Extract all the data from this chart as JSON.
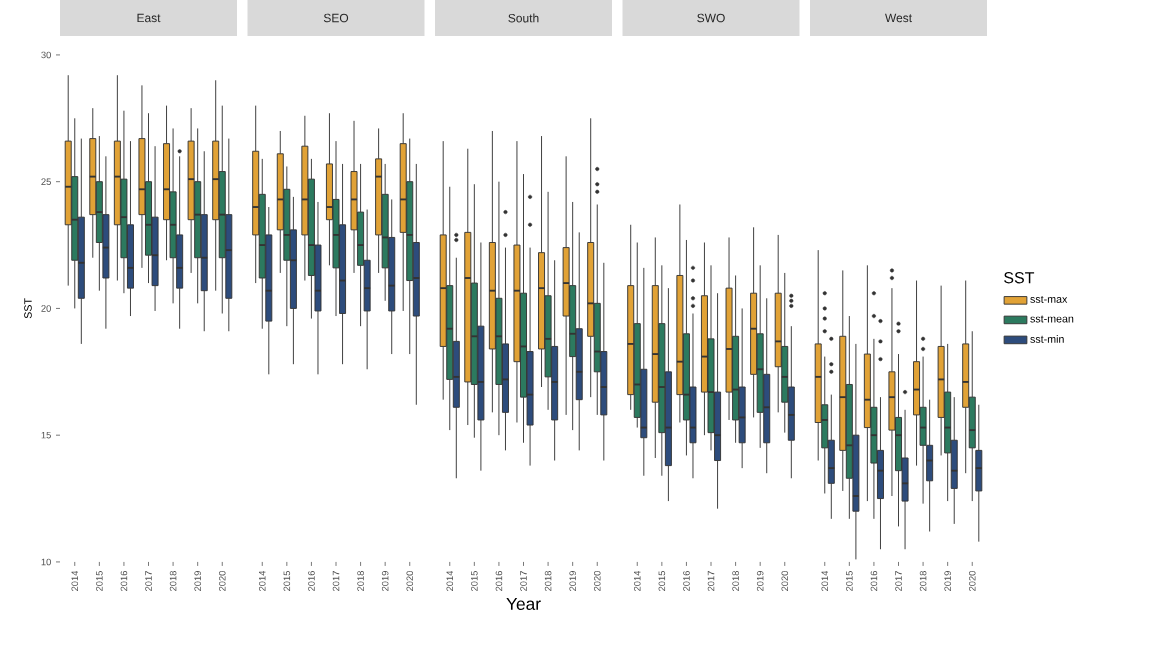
{
  "chart_data": [
    {
      "type": "box",
      "title": "East",
      "ylabel": "SST",
      "categories": [
        "2014",
        "2015",
        "2016",
        "2017",
        "2018",
        "2019",
        "2020"
      ],
      "ylim": [
        10,
        30
      ],
      "yticks": [
        10,
        15,
        20,
        25,
        30
      ],
      "series": [
        {
          "color": "#e1a236",
          "boxes": [
            {
              "low": 20.9,
              "q1": 23.3,
              "median": 24.8,
              "q3": 26.6,
              "high": 29.2
            },
            {
              "low": 22.0,
              "q1": 23.7,
              "median": 25.2,
              "q3": 26.7,
              "high": 27.9
            },
            {
              "low": 21.1,
              "q1": 23.3,
              "median": 25.2,
              "q3": 26.6,
              "high": 29.2
            },
            {
              "low": 21.6,
              "q1": 23.7,
              "median": 24.7,
              "q3": 26.7,
              "high": 28.8
            },
            {
              "low": 21.9,
              "q1": 23.5,
              "median": 24.7,
              "q3": 26.5,
              "high": 28.0
            },
            {
              "low": 21.4,
              "q1": 23.5,
              "median": 25.1,
              "q3": 26.6,
              "high": 27.9
            },
            {
              "low": 20.7,
              "q1": 23.5,
              "median": 25.1,
              "q3": 26.6,
              "high": 29.0
            }
          ]
        },
        {
          "color": "#2c7a5f",
          "boxes": [
            {
              "low": 20.0,
              "q1": 21.9,
              "median": 23.5,
              "q3": 25.2,
              "high": 27.5
            },
            {
              "low": 20.7,
              "q1": 22.6,
              "median": 23.8,
              "q3": 25.0,
              "high": 26.8
            },
            {
              "low": 20.6,
              "q1": 22.0,
              "median": 23.6,
              "q3": 25.1,
              "high": 27.8
            },
            {
              "low": 21.0,
              "q1": 22.1,
              "median": 23.3,
              "q3": 25.0,
              "high": 27.7
            },
            {
              "low": 20.2,
              "q1": 22.0,
              "median": 23.3,
              "q3": 24.6,
              "high": 27.1
            },
            {
              "low": 20.2,
              "q1": 22.0,
              "median": 23.7,
              "q3": 25.0,
              "high": 27.1
            },
            {
              "low": 19.8,
              "q1": 22.0,
              "median": 23.7,
              "q3": 25.4,
              "high": 28.0
            }
          ]
        },
        {
          "color": "#2d4c7c",
          "boxes": [
            {
              "low": 18.6,
              "q1": 20.4,
              "median": 21.8,
              "q3": 23.6,
              "high": 26.7
            },
            {
              "low": 19.2,
              "q1": 21.2,
              "median": 22.4,
              "q3": 23.7,
              "high": 26.0
            },
            {
              "low": 19.7,
              "q1": 20.8,
              "median": 21.6,
              "q3": 23.3,
              "high": 26.6
            },
            {
              "low": 19.9,
              "q1": 20.9,
              "median": 22.1,
              "q3": 23.6,
              "high": 26.4
            },
            {
              "low": 19.2,
              "q1": 20.8,
              "median": 21.6,
              "q3": 22.9,
              "high": 26.0,
              "outliers": [
                26.2
              ]
            },
            {
              "low": 19.1,
              "q1": 20.7,
              "median": 22.0,
              "q3": 23.7,
              "high": 26.2
            },
            {
              "low": 19.1,
              "q1": 20.4,
              "median": 22.3,
              "q3": 23.7,
              "high": 26.7
            }
          ]
        }
      ]
    },
    {
      "type": "box",
      "title": "SEO",
      "tick_labels": "x",
      "categories": [
        "2014",
        "2015",
        "2016",
        "2017",
        "2018",
        "2019",
        "2020"
      ],
      "ylim": [
        10,
        30
      ],
      "yticks": [
        10,
        15,
        20,
        25,
        30
      ],
      "series": [
        {
          "color": "#e1a236",
          "boxes": [
            {
              "low": 21.0,
              "q1": 22.9,
              "median": 24.0,
              "q3": 26.2,
              "high": 28.0
            },
            {
              "low": 21.4,
              "q1": 23.1,
              "median": 24.3,
              "q3": 26.1,
              "high": 27.0
            },
            {
              "low": 21.1,
              "q1": 22.9,
              "median": 24.3,
              "q3": 26.4,
              "high": 27.6
            },
            {
              "low": 21.7,
              "q1": 23.5,
              "median": 24.0,
              "q3": 25.7,
              "high": 27.7
            },
            {
              "low": 21.4,
              "q1": 23.1,
              "median": 24.3,
              "q3": 25.4,
              "high": 27.4
            },
            {
              "low": 21.4,
              "q1": 22.9,
              "median": 25.2,
              "q3": 25.9,
              "high": 27.1
            },
            {
              "low": 19.9,
              "q1": 23.0,
              "median": 24.3,
              "q3": 26.5,
              "high": 27.7
            }
          ]
        },
        {
          "color": "#2c7a5f",
          "boxes": [
            {
              "low": 19.2,
              "q1": 21.2,
              "median": 22.5,
              "q3": 24.5,
              "high": 25.9
            },
            {
              "low": 19.3,
              "q1": 21.9,
              "median": 22.9,
              "q3": 24.7,
              "high": 25.6
            },
            {
              "low": 19.6,
              "q1": 21.3,
              "median": 22.5,
              "q3": 25.1,
              "high": 25.9
            },
            {
              "low": 19.7,
              "q1": 21.6,
              "median": 22.9,
              "q3": 24.3,
              "high": 26.6
            },
            {
              "low": 19.3,
              "q1": 21.7,
              "median": 22.5,
              "q3": 23.8,
              "high": 25.7
            },
            {
              "low": 20.3,
              "q1": 21.6,
              "median": 22.8,
              "q3": 24.5,
              "high": 25.7
            },
            {
              "low": 18.2,
              "q1": 21.1,
              "median": 22.9,
              "q3": 25.0,
              "high": 26.7
            }
          ]
        },
        {
          "color": "#2d4c7c",
          "boxes": [
            {
              "low": 17.4,
              "q1": 19.5,
              "median": 20.7,
              "q3": 22.9,
              "high": 24.0
            },
            {
              "low": 17.8,
              "q1": 20.0,
              "median": 21.9,
              "q3": 23.1,
              "high": 24.4
            },
            {
              "low": 17.4,
              "q1": 19.9,
              "median": 20.7,
              "q3": 22.5,
              "high": 24.2
            },
            {
              "low": 17.8,
              "q1": 19.8,
              "median": 21.1,
              "q3": 23.3,
              "high": 25.7
            },
            {
              "low": 17.6,
              "q1": 19.9,
              "median": 20.8,
              "q3": 21.9,
              "high": 23.9
            },
            {
              "low": 18.2,
              "q1": 19.9,
              "median": 20.9,
              "q3": 22.8,
              "high": 24.3
            },
            {
              "low": 16.2,
              "q1": 19.7,
              "median": 21.2,
              "q3": 22.6,
              "high": 25.7
            }
          ]
        }
      ]
    },
    {
      "type": "box",
      "title": "South",
      "xlabel": "Year",
      "tick_labels": "x",
      "categories": [
        "2014",
        "2015",
        "2016",
        "2017",
        "2018",
        "2019",
        "2020"
      ],
      "ylim": [
        10,
        30
      ],
      "yticks": [
        10,
        15,
        20,
        25,
        30
      ],
      "series": [
        {
          "color": "#e1a236",
          "boxes": [
            {
              "low": 16.4,
              "q1": 18.5,
              "median": 20.8,
              "q3": 22.9,
              "high": 26.6
            },
            {
              "low": 15.4,
              "q1": 17.1,
              "median": 21.2,
              "q3": 23.0,
              "high": 26.3
            },
            {
              "low": 15.9,
              "q1": 18.4,
              "median": 20.7,
              "q3": 22.6,
              "high": 27.0
            },
            {
              "low": 15.5,
              "q1": 17.9,
              "median": 20.7,
              "q3": 22.5,
              "high": 26.6
            },
            {
              "low": 16.9,
              "q1": 18.4,
              "median": 20.8,
              "q3": 22.2,
              "high": 26.8
            },
            {
              "low": 15.8,
              "q1": 19.7,
              "median": 21.0,
              "q3": 22.4,
              "high": 26.0
            },
            {
              "low": 16.5,
              "q1": 18.9,
              "median": 20.2,
              "q3": 22.6,
              "high": 27.5
            }
          ]
        },
        {
          "color": "#2c7a5f",
          "boxes": [
            {
              "low": 15.2,
              "q1": 17.2,
              "median": 19.2,
              "q3": 20.9,
              "high": 24.8
            },
            {
              "low": 14.9,
              "q1": 17.0,
              "median": 18.9,
              "q3": 21.0,
              "high": 24.9
            },
            {
              "low": 15.0,
              "q1": 17.0,
              "median": 18.9,
              "q3": 20.4,
              "high": 25.0
            },
            {
              "low": 14.7,
              "q1": 16.5,
              "median": 18.5,
              "q3": 20.6,
              "high": 25.3
            },
            {
              "low": 16.0,
              "q1": 17.3,
              "median": 18.8,
              "q3": 20.5,
              "high": 24.6
            },
            {
              "low": 15.2,
              "q1": 18.1,
              "median": 19.0,
              "q3": 20.9,
              "high": 24.2
            },
            {
              "low": 15.8,
              "q1": 17.5,
              "median": 18.3,
              "q3": 20.2,
              "high": 24.1,
              "outliers": [
                25.5,
                24.9,
                24.6
              ]
            }
          ]
        },
        {
          "color": "#2d4c7c",
          "boxes": [
            {
              "low": 13.3,
              "q1": 16.1,
              "median": 17.3,
              "q3": 18.7,
              "high": 22.0,
              "outliers": [
                22.9,
                22.7
              ]
            },
            {
              "low": 13.6,
              "q1": 15.6,
              "median": 17.1,
              "q3": 19.3,
              "high": 22.6
            },
            {
              "low": 14.4,
              "q1": 15.9,
              "median": 17.2,
              "q3": 18.6,
              "high": 22.4,
              "outliers": [
                23.8,
                22.9
              ]
            },
            {
              "low": 13.8,
              "q1": 15.4,
              "median": 16.6,
              "q3": 18.3,
              "high": 22.4,
              "outliers": [
                24.4,
                23.3
              ]
            },
            {
              "low": 14.0,
              "q1": 15.6,
              "median": 17.1,
              "q3": 18.5,
              "high": 21.9
            },
            {
              "low": 14.4,
              "q1": 16.4,
              "median": 17.5,
              "q3": 19.2,
              "high": 23.0
            },
            {
              "low": 14.0,
              "q1": 15.8,
              "median": 16.9,
              "q3": 18.3,
              "high": 21.8
            }
          ]
        }
      ]
    },
    {
      "type": "box",
      "title": "SWO",
      "tick_labels": "x",
      "categories": [
        "2014",
        "2015",
        "2016",
        "2017",
        "2018",
        "2019",
        "2020"
      ],
      "ylim": [
        10,
        30
      ],
      "yticks": [
        10,
        15,
        20,
        25,
        30
      ],
      "series": [
        {
          "color": "#e1a236",
          "boxes": [
            {
              "low": 16.0,
              "q1": 16.6,
              "median": 18.6,
              "q3": 20.9,
              "high": 23.3
            },
            {
              "low": 14.1,
              "q1": 16.3,
              "median": 18.2,
              "q3": 20.9,
              "high": 22.8
            },
            {
              "low": 15.5,
              "q1": 16.6,
              "median": 17.9,
              "q3": 21.3,
              "high": 24.1
            },
            {
              "low": 15.0,
              "q1": 16.7,
              "median": 18.1,
              "q3": 20.5,
              "high": 22.6
            },
            {
              "low": 15.6,
              "q1": 16.7,
              "median": 18.4,
              "q3": 20.8,
              "high": 22.8
            },
            {
              "low": 15.7,
              "q1": 17.4,
              "median": 19.2,
              "q3": 20.6,
              "high": 23.2
            },
            {
              "low": 15.9,
              "q1": 17.7,
              "median": 18.7,
              "q3": 20.6,
              "high": 22.9
            }
          ]
        },
        {
          "color": "#2c7a5f",
          "boxes": [
            {
              "low": 15.3,
              "q1": 15.7,
              "median": 17.0,
              "q3": 19.4,
              "high": 22.6
            },
            {
              "low": 13.4,
              "q1": 15.1,
              "median": 16.9,
              "q3": 19.4,
              "high": 21.7
            },
            {
              "low": 14.2,
              "q1": 15.6,
              "median": 16.6,
              "q3": 19.0,
              "high": 22.7
            },
            {
              "low": 14.4,
              "q1": 15.1,
              "median": 16.7,
              "q3": 18.8,
              "high": 21.7
            },
            {
              "low": 14.7,
              "q1": 15.6,
              "median": 16.8,
              "q3": 18.9,
              "high": 21.3
            },
            {
              "low": 14.5,
              "q1": 15.9,
              "median": 17.6,
              "q3": 19.0,
              "high": 21.7
            },
            {
              "low": 15.1,
              "q1": 16.3,
              "median": 17.3,
              "q3": 18.5,
              "high": 21.4
            }
          ]
        },
        {
          "color": "#2d4c7c",
          "boxes": [
            {
              "low": 13.4,
              "q1": 14.9,
              "median": 15.3,
              "q3": 17.6,
              "high": 21.6
            },
            {
              "low": 12.4,
              "q1": 13.8,
              "median": 15.3,
              "q3": 17.5,
              "high": 20.8
            },
            {
              "low": 13.3,
              "q1": 14.7,
              "median": 15.3,
              "q3": 16.9,
              "high": 19.8,
              "outliers": [
                21.6,
                21.1,
                20.4,
                20.1
              ]
            },
            {
              "low": 12.1,
              "q1": 14.0,
              "median": 15.0,
              "q3": 16.7,
              "high": 20.6
            },
            {
              "low": 13.7,
              "q1": 14.7,
              "median": 15.7,
              "q3": 16.9,
              "high": 20.0
            },
            {
              "low": 13.5,
              "q1": 14.7,
              "median": 16.1,
              "q3": 17.4,
              "high": 20.4
            },
            {
              "low": 13.3,
              "q1": 14.8,
              "median": 15.8,
              "q3": 16.9,
              "high": 19.3,
              "outliers": [
                20.5,
                20.3,
                20.1
              ]
            }
          ]
        }
      ]
    },
    {
      "type": "box",
      "title": "West",
      "tick_labels": "x",
      "legend": "right",
      "legend_title": "SST",
      "categories": [
        "2014",
        "2015",
        "2016",
        "2017",
        "2018",
        "2019",
        "2020"
      ],
      "ylim": [
        10,
        30
      ],
      "yticks": [
        10,
        15,
        20,
        25,
        30
      ],
      "series": [
        {
          "name": "sst-max",
          "color": "#e1a236",
          "boxes": [
            {
              "low": 14.0,
              "q1": 15.5,
              "median": 17.3,
              "q3": 18.6,
              "high": 22.3
            },
            {
              "low": 12.8,
              "q1": 14.4,
              "median": 16.5,
              "q3": 18.9,
              "high": 21.5
            },
            {
              "low": 12.4,
              "q1": 15.3,
              "median": 16.4,
              "q3": 18.2,
              "high": 21.7
            },
            {
              "low": 12.6,
              "q1": 15.2,
              "median": 16.5,
              "q3": 17.5,
              "high": 20.8,
              "outliers": [
                21.5,
                21.2
              ]
            },
            {
              "low": 13.8,
              "q1": 15.8,
              "median": 16.8,
              "q3": 17.9,
              "high": 21.1
            },
            {
              "low": 14.2,
              "q1": 15.7,
              "median": 17.2,
              "q3": 18.5,
              "high": 20.9
            },
            {
              "low": 13.5,
              "q1": 16.1,
              "median": 17.1,
              "q3": 18.6,
              "high": 21.1
            }
          ]
        },
        {
          "name": "sst-mean",
          "color": "#2c7a5f",
          "boxes": [
            {
              "low": 12.7,
              "q1": 14.5,
              "median": 15.6,
              "q3": 16.2,
              "high": 18.1,
              "outliers": [
                20.6,
                20.0,
                19.6,
                19.1
              ]
            },
            {
              "low": 11.7,
              "q1": 13.3,
              "median": 14.6,
              "q3": 17.0,
              "high": 19.7
            },
            {
              "low": 11.7,
              "q1": 13.9,
              "median": 15.0,
              "q3": 16.1,
              "high": 18.8,
              "outliers": [
                20.6,
                19.7
              ]
            },
            {
              "low": 11.4,
              "q1": 13.6,
              "median": 15.0,
              "q3": 15.7,
              "high": 18.2,
              "outliers": [
                19.4,
                19.1
              ]
            },
            {
              "low": 12.3,
              "q1": 14.6,
              "median": 15.3,
              "q3": 16.1,
              "high": 18.1,
              "outliers": [
                18.8,
                18.4
              ]
            },
            {
              "low": 12.4,
              "q1": 14.3,
              "median": 15.3,
              "q3": 16.7,
              "high": 18.6
            },
            {
              "low": 12.4,
              "q1": 14.5,
              "median": 15.2,
              "q3": 16.5,
              "high": 19.1
            }
          ]
        },
        {
          "name": "sst-min",
          "color": "#2d4c7c",
          "boxes": [
            {
              "low": 11.7,
              "q1": 13.1,
              "median": 13.7,
              "q3": 14.8,
              "high": 16.6,
              "outliers": [
                18.8,
                17.8,
                17.5
              ]
            },
            {
              "low": 10.1,
              "q1": 12.0,
              "median": 12.6,
              "q3": 15.0,
              "high": 18.6
            },
            {
              "low": 10.5,
              "q1": 12.5,
              "median": 13.6,
              "q3": 14.4,
              "high": 16.5,
              "outliers": [
                19.5,
                18.7,
                18.0
              ]
            },
            {
              "low": 10.5,
              "q1": 12.4,
              "median": 13.1,
              "q3": 14.1,
              "high": 16.0,
              "outliers": [
                16.7
              ]
            },
            {
              "low": 11.2,
              "q1": 13.2,
              "median": 14.0,
              "q3": 14.6,
              "high": 16.4
            },
            {
              "low": 11.5,
              "q1": 12.9,
              "median": 13.6,
              "q3": 14.8,
              "high": 16.5
            },
            {
              "low": 10.8,
              "q1": 12.8,
              "median": 13.7,
              "q3": 14.4,
              "high": 16.2
            }
          ]
        }
      ]
    }
  ]
}
